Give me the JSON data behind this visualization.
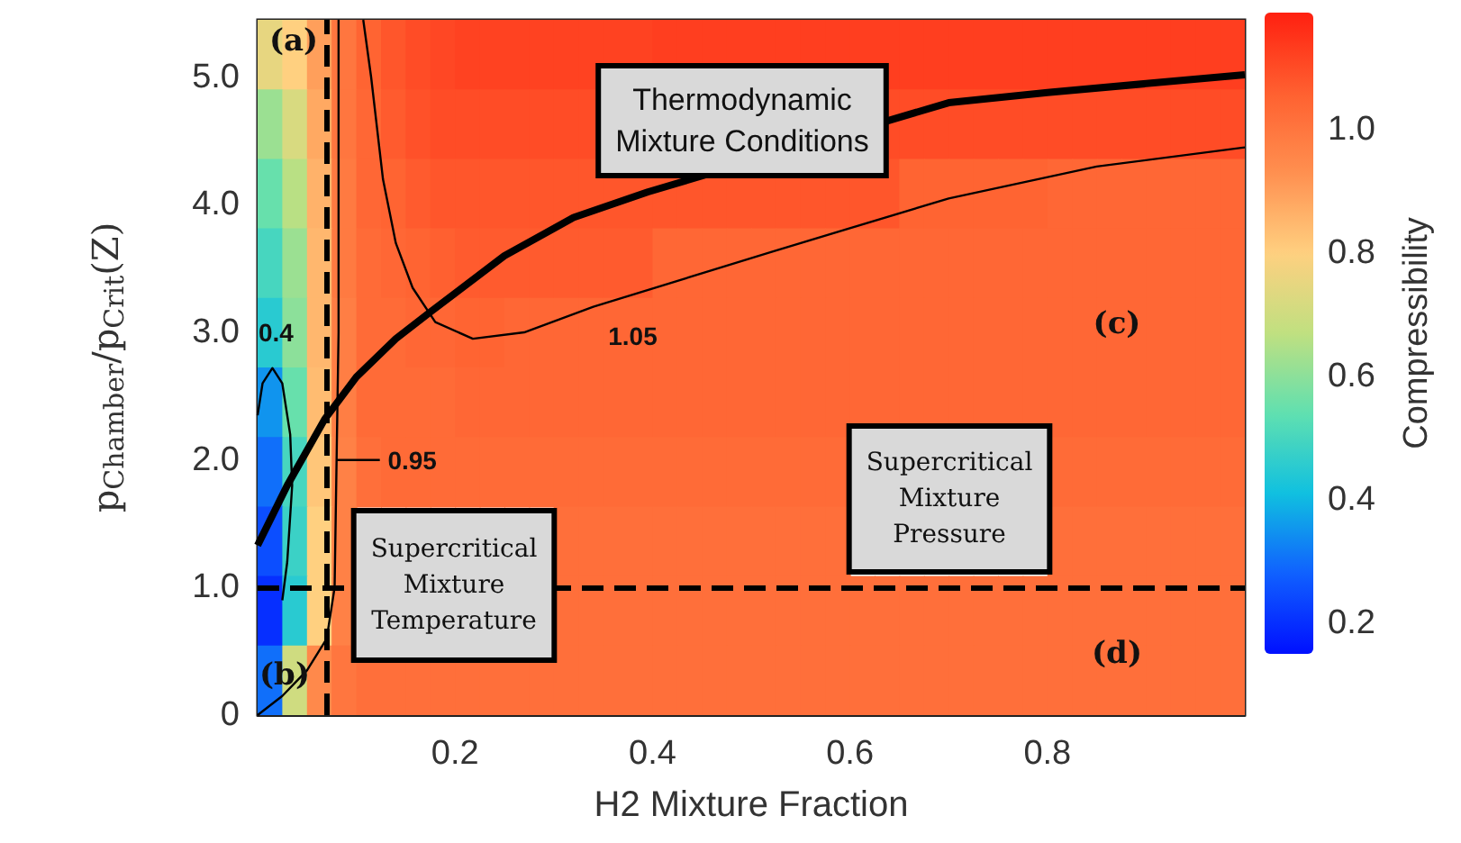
{
  "chart_data": {
    "type": "heatmap",
    "xlabel": "H2 Mixture Fraction",
    "ylabel": "p$_{Chamber}$/p$_{Crit}$(Z)",
    "clabel": "Compressibility",
    "x": [
      0.0125,
      0.0375,
      0.0625,
      0.0875,
      0.1125,
      0.1375,
      0.1625,
      0.1875,
      0.2125,
      0.2375,
      0.2625,
      0.2875,
      0.3125,
      0.3375,
      0.3625,
      0.3875,
      0.4125,
      0.4375,
      0.4625,
      0.4875,
      0.5125,
      0.5375,
      0.5625,
      0.5875,
      0.6125,
      0.6375,
      0.6625,
      0.6875,
      0.7125,
      0.7375,
      0.7625,
      0.7875,
      0.8125,
      0.8375,
      0.8625,
      0.8875,
      0.9125,
      0.9375,
      0.9625,
      0.9875
    ],
    "cells": [
      [
        0.75,
        0.8,
        0.9,
        1.0,
        1.05,
        1.08,
        1.1,
        1.11,
        1.12,
        1.12,
        1.12,
        1.12,
        1.12,
        1.12,
        1.12,
        1.12,
        1.13,
        1.13,
        1.13,
        1.13,
        1.13,
        1.13,
        1.13,
        1.13,
        1.13,
        1.13,
        1.13,
        1.13,
        1.13,
        1.13,
        1.13,
        1.13,
        1.13,
        1.13,
        1.13,
        1.13,
        1.13,
        1.13,
        1.13,
        1.13
      ],
      [
        0.62,
        0.72,
        0.88,
        1.0,
        1.04,
        1.07,
        1.09,
        1.1,
        1.1,
        1.1,
        1.1,
        1.1,
        1.1,
        1.1,
        null,
        null,
        null,
        null,
        null,
        null,
        null,
        null,
        null,
        null,
        null,
        1.1,
        1.1,
        1.1,
        1.1,
        1.1,
        1.1,
        1.1,
        1.1,
        1.1,
        1.1,
        1.1,
        1.1,
        1.1,
        1.1,
        1.1
      ],
      [
        0.55,
        0.66,
        0.86,
        0.99,
        1.04,
        1.05,
        1.07,
        1.08,
        1.08,
        1.08,
        1.08,
        1.08,
        1.08,
        1.08,
        1.08,
        1.08,
        1.08,
        1.08,
        1.08,
        1.08,
        1.08,
        1.08,
        1.08,
        1.08,
        1.08,
        1.08,
        1.05,
        1.05,
        1.05,
        1.05,
        1.05,
        1.05,
        1.04,
        1.04,
        1.04,
        1.04,
        1.04,
        1.04,
        1.04,
        1.04
      ],
      [
        0.5,
        0.62,
        0.85,
        0.99,
        1.03,
        1.04,
        1.05,
        1.06,
        1.07,
        1.07,
        1.07,
        1.07,
        1.07,
        1.07,
        1.07,
        1.07,
        1.04,
        1.04,
        1.04,
        1.04,
        1.04,
        1.04,
        1.04,
        1.04,
        1.04,
        1.04,
        1.04,
        1.04,
        1.04,
        1.04,
        1.04,
        1.04,
        1.04,
        1.04,
        1.04,
        1.04,
        1.04,
        1.04,
        1.04,
        1.04
      ],
      [
        0.45,
        0.6,
        0.85,
        0.98,
        1.03,
        1.03,
        1.04,
        1.04,
        1.05,
        1.05,
        1.04,
        1.04,
        1.04,
        1.04,
        1.04,
        1.04,
        1.04,
        1.04,
        1.04,
        1.04,
        1.04,
        1.04,
        1.04,
        1.04,
        1.04,
        1.04,
        1.04,
        1.04,
        1.04,
        1.04,
        1.04,
        1.04,
        1.04,
        1.04,
        1.04,
        1.04,
        1.04,
        1.04,
        1.04,
        1.04
      ],
      [
        0.35,
        0.55,
        0.84,
        0.98,
        1.03,
        1.03,
        1.03,
        1.03,
        1.04,
        1.04,
        1.04,
        1.04,
        1.04,
        1.04,
        1.04,
        1.04,
        1.04,
        1.04,
        1.04,
        1.04,
        1.04,
        1.04,
        1.04,
        1.04,
        1.04,
        1.04,
        1.04,
        1.04,
        1.04,
        1.04,
        1.04,
        1.04,
        1.04,
        1.04,
        1.04,
        1.04,
        1.04,
        1.04,
        1.04,
        1.04
      ],
      [
        0.3,
        0.5,
        0.82,
        0.97,
        1.02,
        1.03,
        1.03,
        1.03,
        1.03,
        1.03,
        1.03,
        1.03,
        1.03,
        1.03,
        1.03,
        1.03,
        1.03,
        1.03,
        1.03,
        1.03,
        1.03,
        1.03,
        1.03,
        1.03,
        null,
        null,
        null,
        null,
        null,
        null,
        null,
        null,
        1.03,
        1.03,
        1.03,
        1.03,
        1.03,
        1.03,
        1.03,
        1.03
      ],
      [
        0.25,
        0.48,
        0.8,
        0.97,
        null,
        null,
        null,
        null,
        null,
        null,
        null,
        null,
        1.02,
        1.02,
        1.02,
        1.02,
        1.02,
        1.02,
        1.02,
        1.02,
        1.02,
        1.02,
        1.02,
        1.02,
        null,
        null,
        null,
        null,
        null,
        null,
        null,
        null,
        1.02,
        1.02,
        1.02,
        1.02,
        1.02,
        1.02,
        1.02,
        1.02
      ],
      [
        0.2,
        0.45,
        0.8,
        0.97,
        null,
        null,
        null,
        null,
        null,
        null,
        null,
        null,
        1.02,
        1.02,
        1.02,
        1.02,
        1.02,
        1.02,
        1.02,
        1.02,
        1.02,
        1.02,
        1.02,
        1.02,
        1.02,
        1.02,
        1.02,
        1.02,
        1.02,
        1.02,
        1.02,
        1.02,
        1.02,
        1.02,
        1.02,
        1.02,
        1.02,
        1.02,
        1.02,
        1.02
      ],
      [
        0.3,
        0.7,
        0.95,
        1.0,
        1.02,
        1.02,
        1.02,
        1.02,
        1.02,
        1.02,
        1.02,
        1.02,
        1.02,
        1.02,
        1.02,
        1.02,
        1.02,
        1.02,
        1.02,
        1.02,
        1.02,
        1.02,
        1.02,
        1.02,
        1.02,
        1.02,
        1.02,
        1.02,
        1.02,
        1.02,
        1.02,
        1.02,
        1.02,
        1.02,
        1.02,
        1.02,
        1.02,
        1.02,
        1.02,
        1.02
      ]
    ],
    "clim": [
      0.15,
      1.19
    ],
    "cticks": [
      0.2,
      0.4,
      0.6,
      0.8,
      {
        "value": 1.0,
        "label": "1.0"
      }
    ],
    "xlim": [
      0,
      1
    ],
    "xticks": [
      0.2,
      0.4,
      0.6,
      0.8
    ],
    "ylim": [
      0,
      5.45
    ],
    "yticks": [
      0,
      {
        "value": 1,
        "label": "1.0"
      },
      {
        "value": 2,
        "label": "2.0"
      },
      {
        "value": 3,
        "label": "3.0"
      },
      {
        "value": 4,
        "label": "4.0"
      },
      {
        "value": 5,
        "label": "5.0"
      }
    ],
    "series": [
      {
        "type": "line",
        "color": "#000000",
        "x": [
          0,
          0.03,
          0.068,
          0.1,
          0.14,
          0.175,
          0.25,
          0.32,
          0.395,
          0.5,
          0.6,
          0.7,
          0.8,
          0.9,
          1.0
        ],
        "values": [
          1.33,
          1.8,
          2.32,
          2.65,
          2.95,
          3.16,
          3.6,
          3.9,
          4.1,
          null,
          null,
          4.8,
          4.88,
          4.95,
          5.02
        ]
      },
      {
        "type": "line",
        "color": "#000000",
        "x": [
          0.107,
          0.115,
          0.127,
          0.14,
          0.157,
          0.18,
          0.218,
          0.27,
          0.34,
          0.52,
          0.7,
          0.85,
          1.0
        ],
        "values": [
          5.45,
          5.0,
          4.2,
          3.7,
          3.35,
          3.08,
          2.95,
          3.0,
          3.2,
          3.63,
          4.05,
          4.3,
          4.45
        ]
      },
      {
        "type": "line",
        "color": "#000000",
        "x": [
          0.082,
          0.082,
          0.08,
          0.078,
          0.07,
          0.05,
          0.025,
          0
        ],
        "values": [
          5.45,
          3,
          2,
          1,
          0.6,
          0.35,
          0.15,
          0
        ]
      },
      {
        "type": "line",
        "color": "#000000",
        "x": [
          0,
          0.005,
          0.015,
          0.025,
          0.033,
          0.035,
          0.03,
          0.025
        ],
        "values": [
          2.35,
          2.6,
          2.72,
          2.6,
          2.2,
          1.8,
          1.2,
          0.9
        ]
      }
    ],
    "ref_lines": [
      {
        "axis": "x",
        "value": 0.068,
        "color": "#000000",
        "line_style": "dashed"
      },
      {
        "axis": "y",
        "value": 1.0,
        "color": "#000000",
        "line_style": "dashed"
      }
    ],
    "annotations": [
      "Thermodynamic\nMixture Conditions",
      "Supercritical\nMixture\nTemperature",
      "Supercritical\nMixture\nPressure",
      "(a)",
      "(b)",
      "(c)",
      "(d)",
      {
        "text": "1.05",
        "x": 0.38,
        "y": 3.28
      },
      {
        "text": "0.95",
        "x": 0.08,
        "y": 2.0
      },
      {
        "text": "0.4",
        "x": 0.015,
        "y": 2.72
      }
    ]
  }
}
